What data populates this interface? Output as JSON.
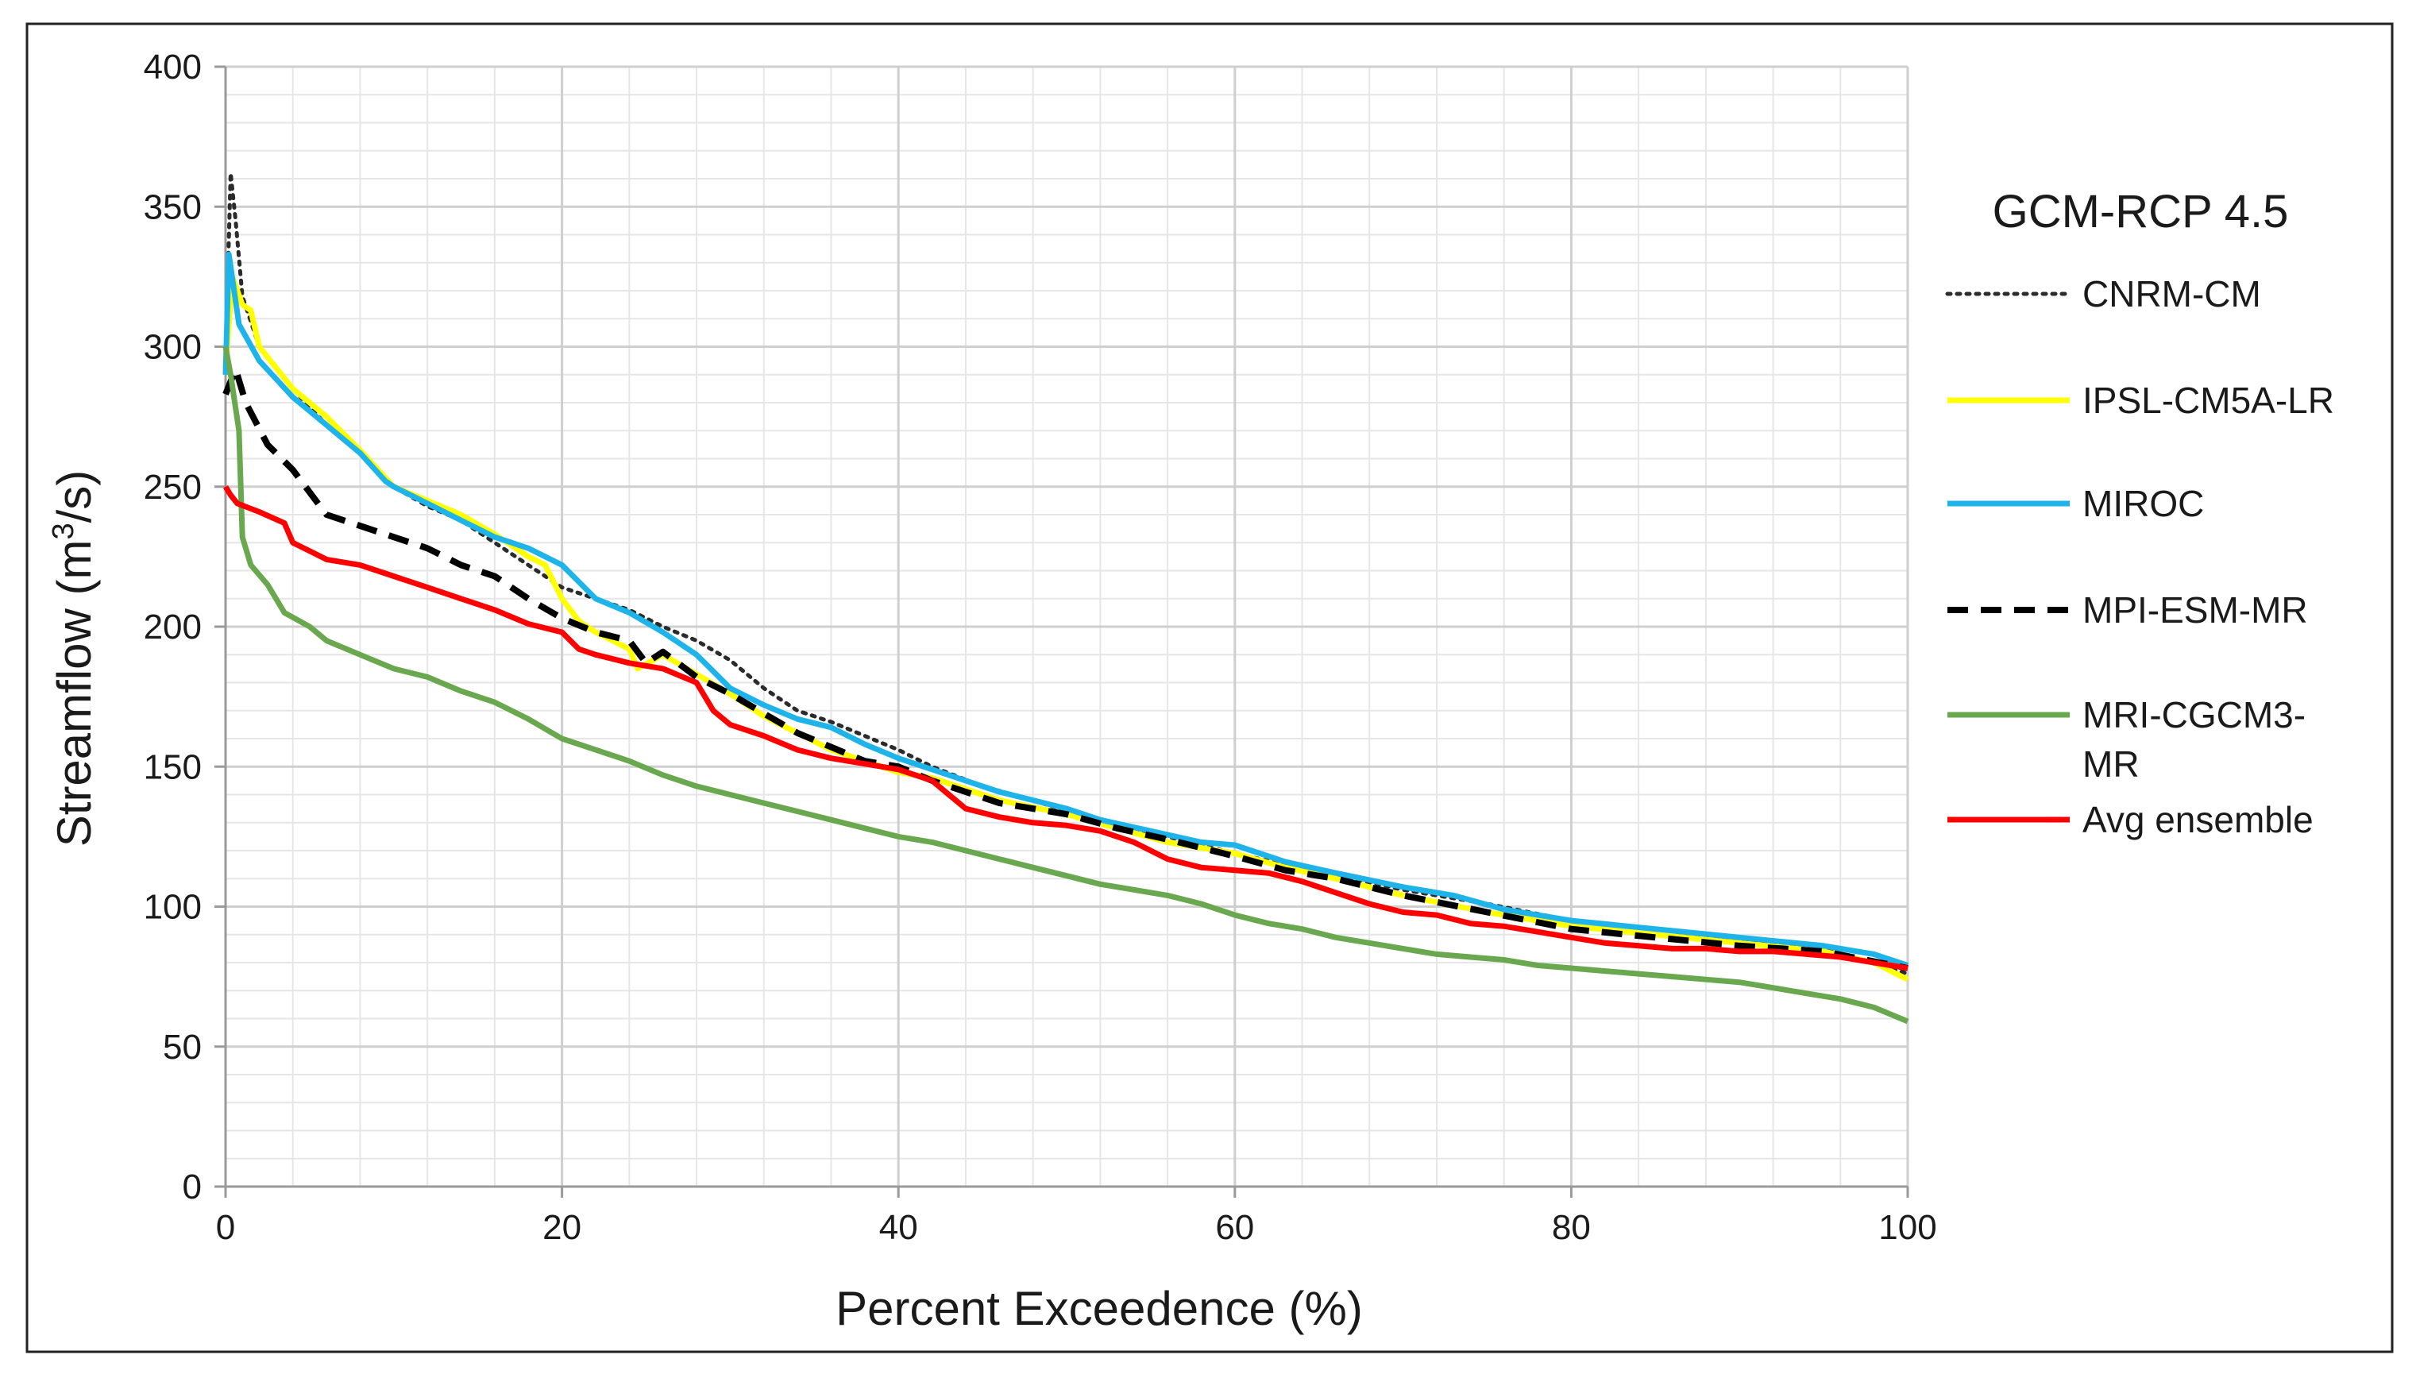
{
  "chart_data": {
    "type": "line",
    "title": "",
    "xlabel": "Percent Exceedence (%)",
    "ylabel_main": "Streamflow (m",
    "ylabel_sup": "3",
    "ylabel_end": "/s)",
    "xlim": [
      0,
      100
    ],
    "ylim": [
      0,
      400
    ],
    "xticks": [
      0,
      20,
      40,
      60,
      80,
      100
    ],
    "yticks": [
      0,
      50,
      100,
      150,
      200,
      250,
      300,
      350,
      400
    ],
    "grid": true,
    "legend_title": "GCM-RCP 4.5",
    "legend_position": "right",
    "series": [
      {
        "name": "CNRM-CM",
        "color": "#2b2b2b",
        "style": "dotted",
        "points": [
          [
            0,
            295
          ],
          [
            0.3,
            362
          ],
          [
            0.6,
            345
          ],
          [
            1,
            318
          ],
          [
            2,
            300
          ],
          [
            4,
            285
          ],
          [
            6,
            272
          ],
          [
            8,
            262
          ],
          [
            10,
            250
          ],
          [
            12,
            243
          ],
          [
            14,
            238
          ],
          [
            16,
            230
          ],
          [
            18,
            222
          ],
          [
            20,
            214
          ],
          [
            22,
            210
          ],
          [
            24,
            206
          ],
          [
            26,
            200
          ],
          [
            28,
            195
          ],
          [
            30,
            188
          ],
          [
            32,
            178
          ],
          [
            34,
            170
          ],
          [
            36,
            166
          ],
          [
            38,
            161
          ],
          [
            40,
            156
          ],
          [
            42,
            150
          ],
          [
            45,
            143
          ],
          [
            48,
            138
          ],
          [
            50,
            134
          ],
          [
            53,
            129
          ],
          [
            56,
            125
          ],
          [
            60,
            119
          ],
          [
            63,
            115
          ],
          [
            67,
            110
          ],
          [
            70,
            106
          ],
          [
            75,
            101
          ],
          [
            80,
            95
          ],
          [
            85,
            92
          ],
          [
            90,
            88
          ],
          [
            95,
            85
          ],
          [
            100,
            76
          ]
        ]
      },
      {
        "name": "IPSL-CM5A-LR",
        "color": "#ffff00",
        "style": "solid",
        "points": [
          [
            0,
            292
          ],
          [
            0.4,
            325
          ],
          [
            1,
            315
          ],
          [
            1.5,
            313
          ],
          [
            2,
            300
          ],
          [
            4,
            285
          ],
          [
            6,
            275
          ],
          [
            8,
            263
          ],
          [
            10,
            250
          ],
          [
            12,
            245
          ],
          [
            14,
            240
          ],
          [
            16,
            233
          ],
          [
            18,
            225
          ],
          [
            19,
            222
          ],
          [
            20,
            210
          ],
          [
            21,
            202
          ],
          [
            22,
            198
          ],
          [
            24,
            192
          ],
          [
            24.5,
            185
          ],
          [
            26,
            190
          ],
          [
            28,
            183
          ],
          [
            30,
            176
          ],
          [
            32,
            168
          ],
          [
            34,
            162
          ],
          [
            36,
            156
          ],
          [
            38,
            152
          ],
          [
            40,
            148
          ],
          [
            42,
            146
          ],
          [
            44,
            142
          ],
          [
            46,
            138
          ],
          [
            50,
            133
          ],
          [
            53,
            128
          ],
          [
            56,
            123
          ],
          [
            60,
            119
          ],
          [
            63,
            114
          ],
          [
            66,
            110
          ],
          [
            70,
            104
          ],
          [
            75,
            98
          ],
          [
            80,
            93
          ],
          [
            85,
            90
          ],
          [
            90,
            87
          ],
          [
            95,
            84
          ],
          [
            98,
            80
          ],
          [
            100,
            74
          ]
        ]
      },
      {
        "name": "MIROC",
        "color": "#1eb4ea",
        "style": "solid",
        "points": [
          [
            0,
            290
          ],
          [
            0.2,
            333
          ],
          [
            0.8,
            308
          ],
          [
            2,
            295
          ],
          [
            4,
            282
          ],
          [
            6,
            272
          ],
          [
            8,
            262
          ],
          [
            9.5,
            252
          ],
          [
            10,
            250
          ],
          [
            12,
            244
          ],
          [
            14,
            238
          ],
          [
            16,
            232
          ],
          [
            18,
            228
          ],
          [
            20,
            222
          ],
          [
            22,
            210
          ],
          [
            24,
            205
          ],
          [
            26,
            198
          ],
          [
            28,
            190
          ],
          [
            29,
            184
          ],
          [
            30,
            178
          ],
          [
            32,
            172
          ],
          [
            34,
            167
          ],
          [
            36,
            164
          ],
          [
            38,
            158
          ],
          [
            40,
            153
          ],
          [
            42,
            149
          ],
          [
            44,
            145
          ],
          [
            46,
            141
          ],
          [
            48,
            138
          ],
          [
            50,
            135
          ],
          [
            52,
            131
          ],
          [
            55,
            127
          ],
          [
            58,
            123
          ],
          [
            60,
            122
          ],
          [
            63,
            116
          ],
          [
            66,
            112
          ],
          [
            70,
            107
          ],
          [
            73,
            104
          ],
          [
            76,
            99
          ],
          [
            80,
            95
          ],
          [
            85,
            92
          ],
          [
            90,
            89
          ],
          [
            95,
            86
          ],
          [
            98,
            83
          ],
          [
            100,
            79
          ]
        ]
      },
      {
        "name": "MPI-ESM-MR",
        "color": "#000000",
        "style": "dashed",
        "points": [
          [
            0,
            283
          ],
          [
            0.6,
            292
          ],
          [
            1.2,
            280
          ],
          [
            2.5,
            265
          ],
          [
            4,
            256
          ],
          [
            5,
            248
          ],
          [
            6,
            240
          ],
          [
            8,
            236
          ],
          [
            10,
            232
          ],
          [
            12,
            228
          ],
          [
            14,
            222
          ],
          [
            16,
            218
          ],
          [
            18,
            210
          ],
          [
            20,
            203
          ],
          [
            22,
            198
          ],
          [
            24,
            195
          ],
          [
            25,
            187
          ],
          [
            26,
            191
          ],
          [
            28,
            182
          ],
          [
            30,
            176
          ],
          [
            32,
            169
          ],
          [
            34,
            162
          ],
          [
            36,
            157
          ],
          [
            38,
            152
          ],
          [
            40,
            150
          ],
          [
            42,
            145
          ],
          [
            44,
            141
          ],
          [
            46,
            137
          ],
          [
            50,
            133
          ],
          [
            53,
            128
          ],
          [
            56,
            124
          ],
          [
            60,
            118
          ],
          [
            63,
            113
          ],
          [
            66,
            110
          ],
          [
            70,
            104
          ],
          [
            75,
            98
          ],
          [
            80,
            92
          ],
          [
            85,
            89
          ],
          [
            90,
            86
          ],
          [
            95,
            84
          ],
          [
            100,
            78
          ]
        ]
      },
      {
        "name": "MRI-CGCM3-MR",
        "color": "#6aa84f",
        "style": "solid",
        "points": [
          [
            0,
            300
          ],
          [
            0.3,
            290
          ],
          [
            0.8,
            270
          ],
          [
            1,
            232
          ],
          [
            1.5,
            222
          ],
          [
            2.5,
            215
          ],
          [
            3.5,
            205
          ],
          [
            5,
            200
          ],
          [
            6,
            195
          ],
          [
            8,
            190
          ],
          [
            10,
            185
          ],
          [
            12,
            182
          ],
          [
            14,
            177
          ],
          [
            16,
            173
          ],
          [
            18,
            167
          ],
          [
            20,
            160
          ],
          [
            22,
            156
          ],
          [
            24,
            152
          ],
          [
            26,
            147
          ],
          [
            28,
            143
          ],
          [
            30,
            140
          ],
          [
            32,
            137
          ],
          [
            34,
            134
          ],
          [
            36,
            131
          ],
          [
            38,
            128
          ],
          [
            40,
            125
          ],
          [
            42,
            123
          ],
          [
            44,
            120
          ],
          [
            46,
            117
          ],
          [
            48,
            114
          ],
          [
            50,
            111
          ],
          [
            52,
            108
          ],
          [
            54,
            106
          ],
          [
            56,
            104
          ],
          [
            58,
            101
          ],
          [
            60,
            97
          ],
          [
            62,
            94
          ],
          [
            64,
            92
          ],
          [
            66,
            89
          ],
          [
            68,
            87
          ],
          [
            70,
            85
          ],
          [
            72,
            83
          ],
          [
            74,
            82
          ],
          [
            76,
            81
          ],
          [
            78,
            79
          ],
          [
            80,
            78
          ],
          [
            82,
            77
          ],
          [
            84,
            76
          ],
          [
            86,
            75
          ],
          [
            88,
            74
          ],
          [
            90,
            73
          ],
          [
            92,
            71
          ],
          [
            94,
            69
          ],
          [
            96,
            67
          ],
          [
            98,
            64
          ],
          [
            100,
            59
          ]
        ]
      },
      {
        "name": "Avg ensemble",
        "color": "#ff0000",
        "style": "solid",
        "points": [
          [
            0,
            250
          ],
          [
            0.3,
            247
          ],
          [
            0.7,
            244
          ],
          [
            2,
            241
          ],
          [
            3.5,
            237
          ],
          [
            4,
            230
          ],
          [
            5,
            227
          ],
          [
            6,
            224
          ],
          [
            8,
            222
          ],
          [
            10,
            218
          ],
          [
            12,
            214
          ],
          [
            14,
            210
          ],
          [
            16,
            206
          ],
          [
            18,
            201
          ],
          [
            20,
            198
          ],
          [
            21,
            192
          ],
          [
            22,
            190
          ],
          [
            24,
            187
          ],
          [
            26,
            185
          ],
          [
            28,
            180
          ],
          [
            29,
            170
          ],
          [
            30,
            165
          ],
          [
            32,
            161
          ],
          [
            34,
            156
          ],
          [
            36,
            153
          ],
          [
            38,
            151
          ],
          [
            40,
            149
          ],
          [
            42,
            145
          ],
          [
            43,
            140
          ],
          [
            44,
            135
          ],
          [
            46,
            132
          ],
          [
            48,
            130
          ],
          [
            50,
            129
          ],
          [
            52,
            127
          ],
          [
            54,
            123
          ],
          [
            56,
            117
          ],
          [
            58,
            114
          ],
          [
            60,
            113
          ],
          [
            62,
            112
          ],
          [
            64,
            109
          ],
          [
            66,
            105
          ],
          [
            68,
            101
          ],
          [
            70,
            98
          ],
          [
            72,
            97
          ],
          [
            74,
            94
          ],
          [
            76,
            93
          ],
          [
            78,
            91
          ],
          [
            80,
            89
          ],
          [
            82,
            87
          ],
          [
            84,
            86
          ],
          [
            86,
            85
          ],
          [
            88,
            85
          ],
          [
            90,
            84
          ],
          [
            92,
            84
          ],
          [
            94,
            83
          ],
          [
            96,
            82
          ],
          [
            98,
            80
          ],
          [
            100,
            78
          ]
        ]
      }
    ]
  }
}
